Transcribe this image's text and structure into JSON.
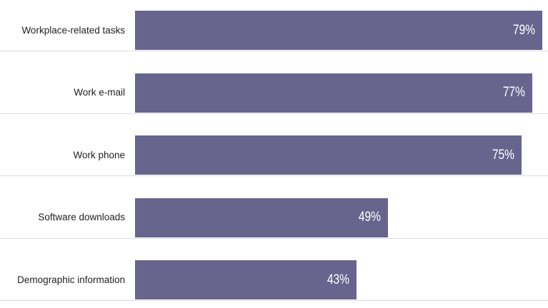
{
  "colors": {
    "bar": "#67658e",
    "grid": "#dcdcdc",
    "label_text": "#222222",
    "value_text": "#ffffff"
  },
  "chart_data": {
    "type": "bar",
    "orientation": "horizontal",
    "categories": [
      "Workplace-related tasks",
      "Work e-mail",
      "Work phone",
      "Software downloads",
      "Demographic information"
    ],
    "values": [
      79,
      77,
      75,
      49,
      43
    ],
    "value_labels": [
      "79%",
      "77%",
      "75%",
      "49%",
      "43%"
    ],
    "xlim": [
      0,
      79
    ],
    "grid": false,
    "legend": "none"
  }
}
